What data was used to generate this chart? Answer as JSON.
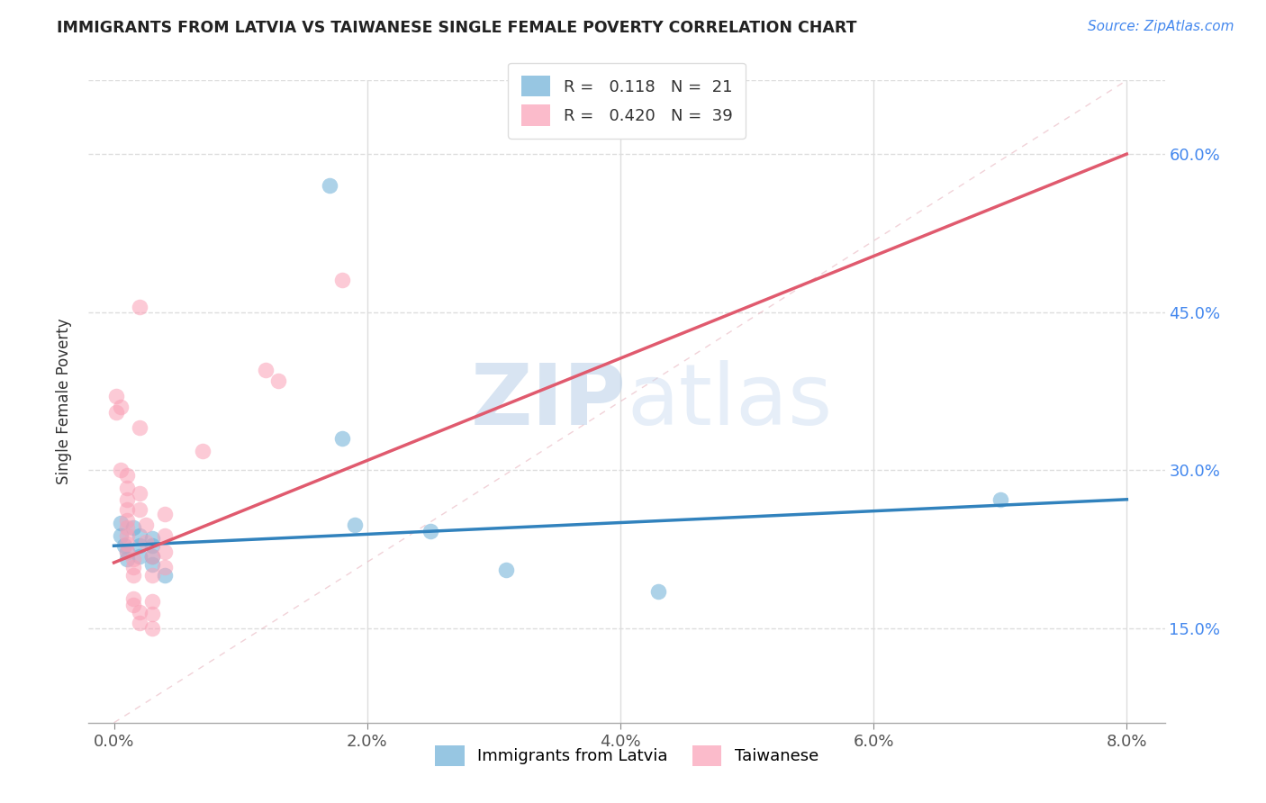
{
  "title": "IMMIGRANTS FROM LATVIA VS TAIWANESE SINGLE FEMALE POVERTY CORRELATION CHART",
  "source": "Source: ZipAtlas.com",
  "ylabel": "Single Female Poverty",
  "legend_blue_r": "0.118",
  "legend_blue_n": "21",
  "legend_pink_r": "0.420",
  "legend_pink_n": "39",
  "ytick_labels": [
    "15.0%",
    "30.0%",
    "45.0%",
    "60.0%"
  ],
  "ytick_values": [
    0.15,
    0.3,
    0.45,
    0.6
  ],
  "xtick_labels": [
    "0.0%",
    "2.0%",
    "4.0%",
    "6.0%",
    "8.0%"
  ],
  "xtick_values": [
    0.0,
    0.02,
    0.04,
    0.06,
    0.08
  ],
  "xlim": [
    -0.002,
    0.083
  ],
  "ylim": [
    0.06,
    0.67
  ],
  "blue_points": [
    [
      0.0005,
      0.25
    ],
    [
      0.0005,
      0.238
    ],
    [
      0.0008,
      0.228
    ],
    [
      0.001,
      0.222
    ],
    [
      0.001,
      0.215
    ],
    [
      0.0015,
      0.245
    ],
    [
      0.002,
      0.238
    ],
    [
      0.002,
      0.228
    ],
    [
      0.002,
      0.218
    ],
    [
      0.003,
      0.235
    ],
    [
      0.003,
      0.228
    ],
    [
      0.003,
      0.218
    ],
    [
      0.003,
      0.21
    ],
    [
      0.004,
      0.2
    ],
    [
      0.017,
      0.57
    ],
    [
      0.018,
      0.33
    ],
    [
      0.019,
      0.248
    ],
    [
      0.025,
      0.242
    ],
    [
      0.031,
      0.205
    ],
    [
      0.043,
      0.185
    ],
    [
      0.07,
      0.272
    ]
  ],
  "pink_points": [
    [
      0.0002,
      0.37
    ],
    [
      0.0002,
      0.355
    ],
    [
      0.0005,
      0.36
    ],
    [
      0.0005,
      0.3
    ],
    [
      0.001,
      0.295
    ],
    [
      0.001,
      0.283
    ],
    [
      0.001,
      0.272
    ],
    [
      0.001,
      0.262
    ],
    [
      0.001,
      0.252
    ],
    [
      0.001,
      0.245
    ],
    [
      0.001,
      0.238
    ],
    [
      0.001,
      0.23
    ],
    [
      0.001,
      0.222
    ],
    [
      0.0015,
      0.215
    ],
    [
      0.0015,
      0.208
    ],
    [
      0.0015,
      0.2
    ],
    [
      0.0015,
      0.178
    ],
    [
      0.0015,
      0.172
    ],
    [
      0.002,
      0.165
    ],
    [
      0.002,
      0.155
    ],
    [
      0.002,
      0.455
    ],
    [
      0.002,
      0.34
    ],
    [
      0.002,
      0.278
    ],
    [
      0.002,
      0.262
    ],
    [
      0.0025,
      0.248
    ],
    [
      0.0025,
      0.232
    ],
    [
      0.003,
      0.218
    ],
    [
      0.003,
      0.2
    ],
    [
      0.003,
      0.175
    ],
    [
      0.003,
      0.163
    ],
    [
      0.003,
      0.15
    ],
    [
      0.004,
      0.258
    ],
    [
      0.004,
      0.238
    ],
    [
      0.004,
      0.222
    ],
    [
      0.004,
      0.208
    ],
    [
      0.007,
      0.318
    ],
    [
      0.012,
      0.395
    ],
    [
      0.013,
      0.385
    ],
    [
      0.018,
      0.48
    ]
  ],
  "blue_color": "#6baed6",
  "pink_color": "#fa9fb5",
  "blue_line_color": "#3182bd",
  "pink_line_color": "#e05a6e",
  "blue_line": [
    [
      0.0,
      0.228
    ],
    [
      0.08,
      0.272
    ]
  ],
  "pink_line": [
    [
      0.0,
      0.212
    ],
    [
      0.08,
      0.6
    ]
  ],
  "diag_line": [
    [
      0.0,
      0.06
    ],
    [
      0.08,
      0.67
    ]
  ],
  "watermark_zip": "ZIP",
  "watermark_atlas": "atlas",
  "background_color": "#ffffff",
  "grid_color": "#dddddd"
}
